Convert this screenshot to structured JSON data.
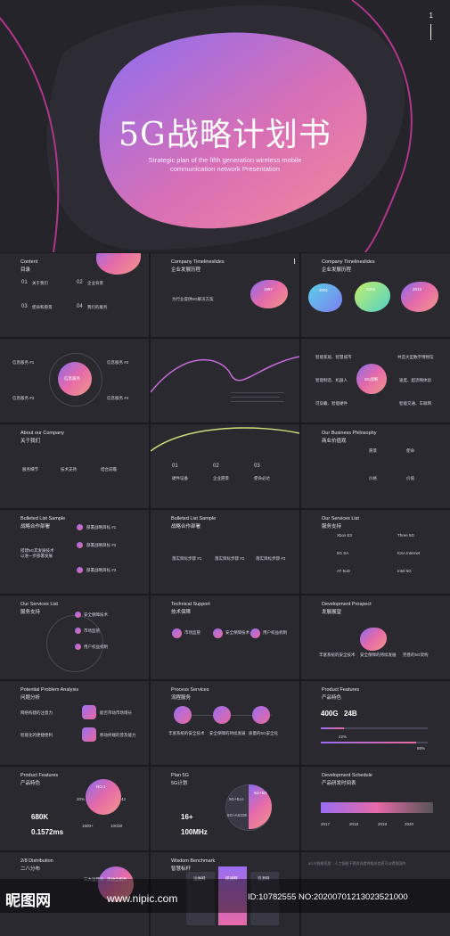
{
  "hero": {
    "title": "5G战略计划书",
    "subtitle_line1": "Strategic plan of the fifth generation wireless mobile",
    "subtitle_line2": "communication network Presentation",
    "page_number": "1"
  },
  "s1": {
    "en": "Content",
    "zh": "目录",
    "i1n": "01",
    "i1": "关于我们",
    "i2n": "02",
    "i2": "企业背景",
    "i3n": "03",
    "i3": "使命和愿景",
    "i4n": "04",
    "i4": "我们的服务"
  },
  "s2": {
    "en": "Company Timelineslides",
    "zh": "企业发展历程",
    "item": "为行业提供5G解决方案",
    "year": "1997"
  },
  "s3": {
    "en": "Company Timelineslides",
    "zh": "企业发展历程",
    "y1": "2001",
    "y2": "2009",
    "y3": "2013"
  },
  "s4": {
    "center": "信息服务",
    "a": "信息服务 #1",
    "b": "信息服务 #2",
    "c": "信息服务 #3",
    "d": "信息服务 #4"
  },
  "s6": {
    "center": "5G战略",
    "a": "智能家居、智慧城市",
    "b": "共造大型数字博物馆",
    "c": "智能制造、机器人",
    "d": "速度、超流畅体验",
    "e": "可穿戴、智能硬件",
    "f": "智能交通、车联网"
  },
  "s7": {
    "en": "About our Company",
    "zh": "关于我们",
    "a": "服务细节",
    "b": "技术支持",
    "c": "结合前瞻"
  },
  "s8": {
    "a_n": "01",
    "a": "硬件设备",
    "b_n": "02",
    "b": "企业愿景",
    "c_n": "03",
    "c": "使命必达"
  },
  "s9": {
    "en": "Our Business Philosophy",
    "zh": "商业价值观",
    "a": "愿景",
    "b": "使命",
    "c": "价格",
    "d": "价值"
  },
  "s10": {
    "en": "Bulleted List Sample",
    "zh": "战略合作部署",
    "a": "部署战略目标 #1",
    "b": "部署战略目标 #2",
    "c": "部署战略目标 #3",
    "left1": "搭建5G其发展技术",
    "left2": "以进一步部署发展"
  },
  "s11": {
    "en": "Bulleted List Sample",
    "zh": "战略合作部署",
    "a": "落实目标步骤 #1",
    "b": "落实目标步骤 #2",
    "c": "落实目标步骤 #3"
  },
  "s12": {
    "en": "Our Services List",
    "zh": "服务支持",
    "a": "Xbox E3",
    "b": "Three 5G",
    "c": "5G SA",
    "d": "KSA Internet",
    "e": "AT 5uD",
    "f": "Intel 5G"
  },
  "s13": {
    "en": "Our Services List",
    "zh": "服务支持",
    "a": "安全保障技术",
    "b": "市场监管",
    "c": "用户权益机制"
  },
  "s14": {
    "en": "Technical Support",
    "zh": "技术保障",
    "a": "市场监管",
    "b": "安全保障技术",
    "c": "用户权益机制"
  },
  "s15": {
    "en": "Development Prospect",
    "zh": "发展展望",
    "a": "丰富系统的安全技术",
    "b": "安全保障的持续发展",
    "c": "完善的5G架构"
  },
  "s16": {
    "en": "Potential Problem Analysis",
    "zh": "问题分析",
    "a": "网络构建的注意力",
    "b": "能否带动市场增长",
    "c": "智能化的便捷便利",
    "d": "移动终端的普及能力"
  },
  "s17": {
    "en": "Process Services",
    "zh": "流程服务",
    "a": "丰富系统的安全技术",
    "b": "安全保障的持续发展",
    "c": "质量的5G安全化"
  },
  "s18": {
    "en": "Product Features",
    "zh": "产品特色",
    "v1": "400G",
    "v2": "24B",
    "p1": "22%",
    "p2": "89%",
    "p1_value": 22,
    "p2_value": 89
  },
  "s19": {
    "en": "Product Features",
    "zh": "产品特色",
    "badge": "NO.1",
    "p": "20%",
    "q": "42",
    "r": "1600+",
    "s": "10Gbit",
    "v1": "680K",
    "v2": "0.1572ms"
  },
  "s20": {
    "en": "Plan 5G",
    "zh": "5G计划",
    "v1": "16+",
    "v2": "100MHz",
    "a": "5G+Eco",
    "b": "5G+AICDE",
    "c": "5G+5G"
  },
  "s21": {
    "en": "Development Schedule",
    "zh": "产品研发时间表",
    "y1": "2017",
    "y2": "2018",
    "y3": "2019",
    "y4": "2020"
  },
  "s22": {
    "en": "2/8 Distribution",
    "zh": "二八分布",
    "a": "三大运营商",
    "b": "流动全服务"
  },
  "s23": {
    "en": "Wisdom Benchmark",
    "zh": "智慧标杆",
    "a": "运维网",
    "b": "提速网",
    "c": "资源网"
  },
  "s24": {
    "line1": "5G与智能家居：人工智能干预资讯提供相关信息可以得到国内"
  },
  "watermark": {
    "logo": "昵图网",
    "url": "www.nipic.com",
    "id": "ID:10782555 NO:20200701213023521000"
  },
  "colors": {
    "purple": "#8a6cf0",
    "pink": "#e66aa8",
    "bg": "#2a2930"
  }
}
